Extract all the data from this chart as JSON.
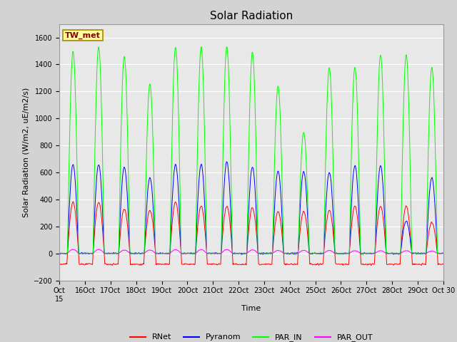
{
  "title": "Solar Radiation",
  "ylabel": "Solar Radiation (W/m2, uE/m2/s)",
  "xlabel": "Time",
  "ylim": [
    -200,
    1700
  ],
  "yticks": [
    -200,
    0,
    200,
    400,
    600,
    800,
    1000,
    1200,
    1400,
    1600
  ],
  "num_days": 15,
  "start_day": 15,
  "colors": {
    "RNet": "#ff0000",
    "Pyranom": "#0000ff",
    "PAR_IN": "#00ff00",
    "PAR_OUT": "#ff00ff"
  },
  "legend_labels": [
    "RNet",
    "Pyranom",
    "PAR_IN",
    "PAR_OUT"
  ],
  "station_label": "TW_met",
  "background_color": "#d3d3d3",
  "plot_bg_color": "#e8e8e8",
  "title_fontsize": 11,
  "label_fontsize": 8,
  "tick_fontsize": 7,
  "par_in_peaks": [
    1500,
    1530,
    1460,
    1260,
    1530,
    1530,
    1530,
    1490,
    1240,
    900,
    1380,
    1380,
    1470,
    1470,
    1380
  ],
  "pyranom_peaks": [
    660,
    660,
    640,
    560,
    660,
    660,
    680,
    640,
    610,
    610,
    600,
    650,
    650,
    240,
    560
  ],
  "rnet_peaks": [
    380,
    380,
    330,
    320,
    380,
    350,
    350,
    340,
    310,
    310,
    320,
    350,
    350,
    350,
    230
  ],
  "par_out_peaks": [
    30,
    30,
    25,
    25,
    28,
    28,
    28,
    26,
    22,
    22,
    22,
    20,
    20,
    20,
    18
  ]
}
